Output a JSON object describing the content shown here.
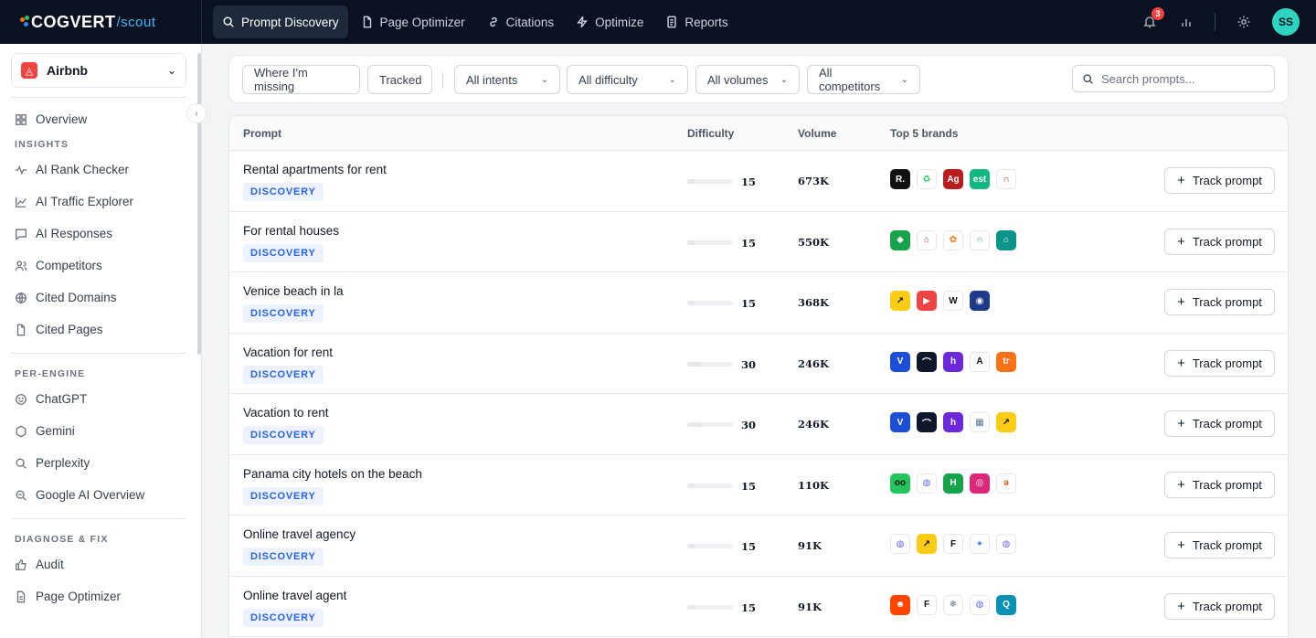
{
  "app": {
    "logo_main": "COGVERT",
    "logo_sub": "/scout",
    "notification_count": "3",
    "user_initials": "SS"
  },
  "nav": [
    {
      "label": "Prompt Discovery",
      "icon": "search-icon",
      "active": true
    },
    {
      "label": "Page Optimizer",
      "icon": "file-icon",
      "active": false
    },
    {
      "label": "Citations",
      "icon": "link-icon",
      "active": false
    },
    {
      "label": "Optimize",
      "icon": "bolt-icon",
      "active": false
    },
    {
      "label": "Reports",
      "icon": "report-icon",
      "active": false
    }
  ],
  "sidebar": {
    "workspace": "Airbnb",
    "overview": "Overview",
    "sections": {
      "insights": "INSIGHTS",
      "per_engine": "PER-ENGINE",
      "diagnose": "DIAGNOSE & FIX"
    },
    "insights": [
      "AI Rank Checker",
      "AI Traffic Explorer",
      "AI Responses",
      "Competitors",
      "Cited Domains",
      "Cited Pages"
    ],
    "engines": [
      "ChatGPT",
      "Gemini",
      "Perplexity",
      "Google AI Overview"
    ],
    "diagnose": [
      "Audit",
      "Page Optimizer"
    ]
  },
  "filters": {
    "missing": "Where I'm missing",
    "tracked": "Tracked",
    "intents": "All intents",
    "difficulty": "All difficulty",
    "volumes": "All volumes",
    "competitors": "All competitors",
    "search_placeholder": "Search prompts..."
  },
  "table": {
    "headers": {
      "prompt": "Prompt",
      "difficulty": "Difficulty",
      "volume": "Volume",
      "brands": "Top 5 brands"
    },
    "tag_label": "DISCOVERY",
    "track_label": "Track prompt",
    "rows": [
      {
        "prompt": "Rental apartments for rent",
        "difficulty": "15",
        "difficulty_pct": 15,
        "volume": "673K",
        "brands": [
          {
            "icon": "r-brand-icon",
            "bg": "#111111",
            "glyph": "R."
          },
          {
            "icon": "recycle-brand-icon",
            "bg": "#ffffff",
            "fg": "#22c55e",
            "glyph": "♻"
          },
          {
            "icon": "ag-brand-icon",
            "bg": "#b91c1c",
            "glyph": "Ag"
          },
          {
            "icon": "est-brand-icon",
            "bg": "#10b981",
            "glyph": "est"
          },
          {
            "icon": "arch-brand-icon",
            "bg": "#ffffff",
            "fg": "#dc2626",
            "glyph": "∩"
          }
        ]
      },
      {
        "prompt": "For rental houses",
        "difficulty": "15",
        "difficulty_pct": 15,
        "volume": "550K",
        "brands": [
          {
            "icon": "diamond-brand-icon",
            "bg": "#16a34a",
            "glyph": "◆"
          },
          {
            "icon": "house-brand-icon",
            "bg": "#ffffff",
            "fg": "#dc2626",
            "glyph": "⌂"
          },
          {
            "icon": "flower-brand-icon",
            "bg": "#ffffff",
            "fg": "#f97316",
            "glyph": "✿"
          },
          {
            "icon": "arch-green-brand-icon",
            "bg": "#ffffff",
            "fg": "#22c55e",
            "glyph": "∩"
          },
          {
            "icon": "home-teal-brand-icon",
            "bg": "#0d9488",
            "glyph": "⌂"
          }
        ]
      },
      {
        "prompt": "Venice beach in la",
        "difficulty": "15",
        "difficulty_pct": 15,
        "volume": "368K",
        "brands": [
          {
            "icon": "arrow-brand-icon",
            "bg": "#facc15",
            "fg": "#111111",
            "glyph": "↗"
          },
          {
            "icon": "youtube-brand-icon",
            "bg": "#ef4444",
            "glyph": "▶"
          },
          {
            "icon": "wikipedia-brand-icon",
            "bg": "#ffffff",
            "fg": "#111111",
            "glyph": "W"
          },
          {
            "icon": "globe-brand-icon",
            "bg": "#1e3a8a",
            "glyph": "◉"
          }
        ]
      },
      {
        "prompt": "Vacation for rent",
        "difficulty": "30",
        "difficulty_pct": 30,
        "volume": "246K",
        "brands": [
          {
            "icon": "v-brand-icon",
            "bg": "#1d4ed8",
            "glyph": "V"
          },
          {
            "icon": "dome-brand-icon",
            "bg": "#0f172a",
            "glyph": "⌒"
          },
          {
            "icon": "h-brand-icon",
            "bg": "#6d28d9",
            "glyph": "h"
          },
          {
            "icon": "a-brand-icon",
            "bg": "#ffffff",
            "fg": "#111111",
            "glyph": "A"
          },
          {
            "icon": "tripping-brand-icon",
            "bg": "#f97316",
            "glyph": "tr"
          }
        ]
      },
      {
        "prompt": "Vacation to rent",
        "difficulty": "30",
        "difficulty_pct": 30,
        "volume": "246K",
        "brands": [
          {
            "icon": "v-brand-icon",
            "bg": "#1d4ed8",
            "glyph": "V"
          },
          {
            "icon": "dome-brand-icon",
            "bg": "#0f172a",
            "glyph": "⌒"
          },
          {
            "icon": "h-brand-icon",
            "bg": "#6d28d9",
            "glyph": "h"
          },
          {
            "icon": "building-brand-icon",
            "bg": "#ffffff",
            "fg": "#64748b",
            "glyph": "▦"
          },
          {
            "icon": "arrow-brand-icon",
            "bg": "#facc15",
            "fg": "#111111",
            "glyph": "↗"
          }
        ]
      },
      {
        "prompt": "Panama city hotels on the beach",
        "difficulty": "15",
        "difficulty_pct": 15,
        "volume": "110K",
        "brands": [
          {
            "icon": "tripadvisor-brand-icon",
            "bg": "#22c55e",
            "fg": "#111111",
            "glyph": "oo"
          },
          {
            "icon": "globe-grey-brand-icon",
            "bg": "#ffffff",
            "fg": "#6366f1",
            "glyph": "◍"
          },
          {
            "icon": "holiday-inn-brand-icon",
            "bg": "#16a34a",
            "glyph": "H"
          },
          {
            "icon": "instagram-brand-icon",
            "bg": "#db2777",
            "glyph": "◎"
          },
          {
            "icon": "e-brand-icon",
            "bg": "#ffffff",
            "fg": "#ea580c",
            "glyph": "ǝ"
          }
        ]
      },
      {
        "prompt": "Online travel agency",
        "difficulty": "15",
        "difficulty_pct": 15,
        "volume": "91K",
        "brands": [
          {
            "icon": "globe-grey-brand-icon",
            "bg": "#ffffff",
            "fg": "#6366f1",
            "glyph": "◍"
          },
          {
            "icon": "arrow-brand-icon",
            "bg": "#facc15",
            "fg": "#111111",
            "glyph": "↗"
          },
          {
            "icon": "f-brand-icon",
            "bg": "#ffffff",
            "fg": "#111111",
            "glyph": "F"
          },
          {
            "icon": "sparkle-brand-icon",
            "bg": "#ffffff",
            "fg": "#3b82f6",
            "glyph": "✦"
          },
          {
            "icon": "globe-grey-brand-icon",
            "bg": "#ffffff",
            "fg": "#6366f1",
            "glyph": "◍"
          }
        ]
      },
      {
        "prompt": "Online travel agent",
        "difficulty": "15",
        "difficulty_pct": 15,
        "volume": "91K",
        "brands": [
          {
            "icon": "reddit-brand-icon",
            "bg": "#ff4500",
            "glyph": "☻"
          },
          {
            "icon": "f-brand-icon",
            "bg": "#ffffff",
            "fg": "#111111",
            "glyph": "F"
          },
          {
            "icon": "snowflake-brand-icon",
            "bg": "#ffffff",
            "fg": "#64748b",
            "glyph": "❄"
          },
          {
            "icon": "globe-grey-brand-icon",
            "bg": "#ffffff",
            "fg": "#6366f1",
            "glyph": "◍"
          },
          {
            "icon": "q-brand-icon",
            "bg": "#0891b2",
            "glyph": "Q"
          }
        ]
      }
    ]
  }
}
